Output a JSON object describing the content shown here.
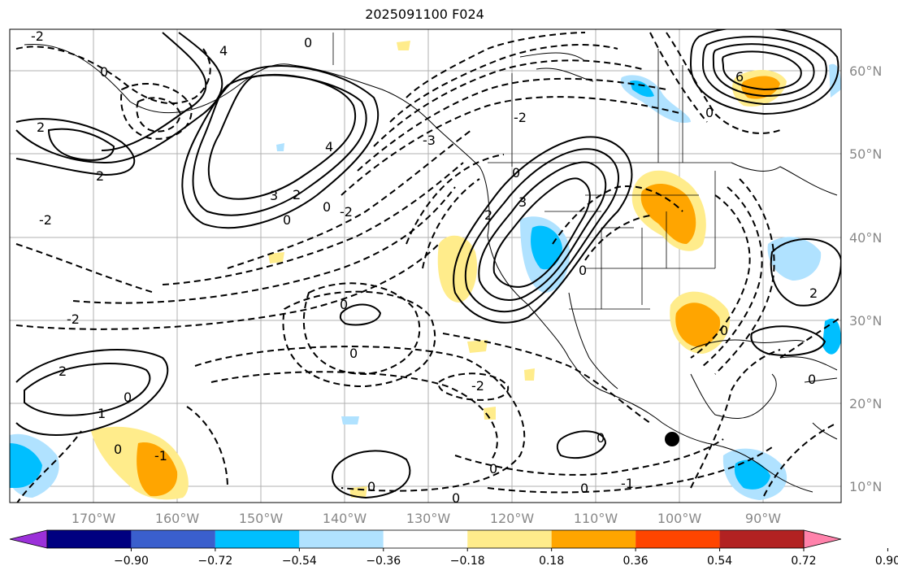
{
  "title": "2025091100 F024",
  "lon_labels": [
    "170°W",
    "160°W",
    "150°W",
    "140°W",
    "130°W",
    "120°W",
    "110°W",
    "100°W",
    "90°W"
  ],
  "lat_labels": [
    "60°N",
    "50°N",
    "40°N",
    "30°N",
    "20°N",
    "10°N"
  ],
  "colorbar": {
    "ticks": [
      "−0.90",
      "−0.72",
      "−0.54",
      "−0.36",
      "−0.18",
      "0.18",
      "0.36",
      "0.54",
      "0.72",
      "0.90"
    ],
    "colors": [
      "#9b30d9",
      "#000080",
      "#3a5fcd",
      "#00bfff",
      "#b0e2ff",
      "#ffffff",
      "#ffec8b",
      "#ffa500",
      "#ff4500",
      "#b22222",
      "#ff82ab"
    ]
  },
  "marker": {
    "label": "station-marker"
  },
  "contour_labels": {
    "zero": "0",
    "neg1": "-1",
    "neg2": "-2",
    "pos1": "1",
    "pos2": "2",
    "pos3": "3",
    "pos4": "4",
    "pos6": "6",
    "neg3": "-3"
  }
}
